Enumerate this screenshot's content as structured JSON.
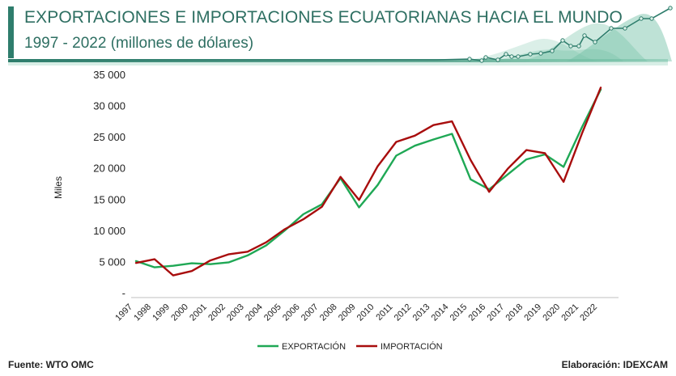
{
  "header": {
    "title": "EXPORTACIONES E IMPORTACIONES ECUATORIANAS HACIA EL MUNDO",
    "subtitle": "1997 - 2022 (millones de dólares)"
  },
  "footer": {
    "source": "Fuente:  WTO OMC",
    "credit": "Elaboración: IDEXCAM"
  },
  "colors": {
    "export": "#1fa855",
    "import": "#a80d0d",
    "accent": "#2e7d6c"
  },
  "chart_data": {
    "type": "line",
    "title": "EXPORTACIONES E IMPORTACIONES ECUATORIANAS HACIA EL MUNDO",
    "ylabel": "Miles",
    "xlabel": "",
    "ylim": [
      0,
      35000
    ],
    "yticks": [
      0,
      5000,
      10000,
      15000,
      20000,
      25000,
      30000,
      35000
    ],
    "ytick_labels": [
      "-",
      "5 000",
      "10 000",
      "15 000",
      "20 000",
      "25 000",
      "30 000",
      "35 000"
    ],
    "categories": [
      "1997",
      "1998",
      "1999",
      "2000",
      "2001",
      "2002",
      "2003",
      "2004",
      "2005",
      "2006",
      "2007",
      "2008",
      "2009",
      "2010",
      "2011",
      "2012",
      "2013",
      "2014",
      "2015",
      "2016",
      "2017",
      "2018",
      "2019",
      "2020",
      "2021",
      "2022"
    ],
    "grid": false,
    "legend_position": "bottom",
    "series": [
      {
        "name": "EXPORTACIÓN",
        "values": [
          5200,
          4200,
          4450,
          4850,
          4700,
          5000,
          6100,
          7700,
          10100,
          12700,
          14300,
          18500,
          13800,
          17400,
          22100,
          23700,
          24700,
          25600,
          18300,
          16700,
          19100,
          21500,
          22300,
          20300,
          26700,
          32700
        ]
      },
      {
        "name": "IMPORTACIÓN",
        "values": [
          4900,
          5500,
          2900,
          3600,
          5300,
          6300,
          6700,
          8200,
          10300,
          11900,
          13900,
          18700,
          15000,
          20400,
          24300,
          25300,
          27000,
          27600,
          21400,
          16300,
          20000,
          23000,
          22500,
          17900,
          25700,
          33000
        ]
      }
    ]
  }
}
